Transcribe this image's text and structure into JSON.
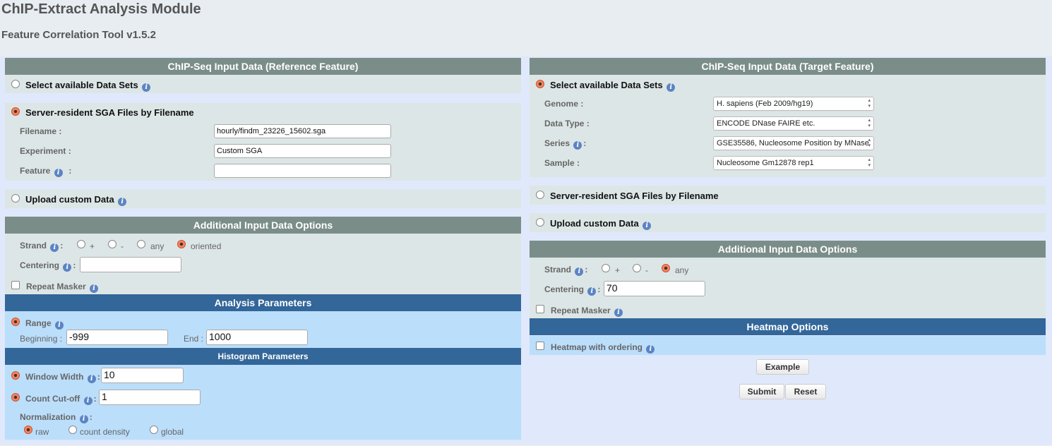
{
  "app": {
    "title": "ChIP-Extract Analysis Module",
    "subtitle": "Feature Correlation Tool v1.5.2"
  },
  "left": {
    "header": "ChIP-Seq Input Data (Reference Feature)",
    "select_datasets": "Select available Data Sets",
    "server_resident": "Server-resident SGA Files by Filename",
    "filename_label": "Filename :",
    "filename_value": "hourly/findm_23226_15602.sga",
    "experiment_label": "Experiment :",
    "experiment_value": "Custom SGA",
    "feature_label": "Feature",
    "feature_value": "",
    "upload": "Upload custom Data",
    "options_header": "Additional Input Data Options",
    "strand_label": "Strand",
    "strand_options": [
      "+",
      "-",
      "any",
      "oriented"
    ],
    "strand_selected": "oriented",
    "centering_label": "Centering",
    "centering_value": "",
    "repeat_masker": "Repeat Masker"
  },
  "analysis": {
    "header": "Analysis Parameters",
    "range": "Range",
    "beginning_label": "Beginning :",
    "beginning_value": "-999",
    "end_label": "End :",
    "end_value": "1000"
  },
  "histogram": {
    "header": "Histogram Parameters",
    "window_width": "Window Width",
    "window_width_value": "10",
    "count_cutoff": "Count Cut-off",
    "count_cutoff_value": "1",
    "normalization": "Normalization",
    "norm_options": [
      "raw",
      "count density",
      "global"
    ],
    "norm_selected": "raw"
  },
  "right": {
    "header": "ChIP-Seq Input Data (Target Feature)",
    "select_datasets": "Select available Data Sets",
    "genome_label": "Genome :",
    "genome_value": "H. sapiens (Feb 2009/hg19)",
    "datatype_label": "Data Type :",
    "datatype_value": "ENCODE DNase FAIRE etc.",
    "series_label": "Series",
    "series_value": "GSE35586, Nucleosome Position by MNase",
    "sample_label": "Sample :",
    "sample_value": "Nucleosome Gm12878 rep1",
    "server_resident": "Server-resident SGA Files by Filename",
    "upload": "Upload custom Data",
    "options_header": "Additional Input Data Options",
    "strand_label": "Strand",
    "strand_options": [
      "+",
      "-",
      "any"
    ],
    "strand_selected": "any",
    "centering_label": "Centering",
    "centering_value": "70",
    "repeat_masker": "Repeat Masker"
  },
  "heatmap": {
    "header": "Heatmap Options",
    "ordering": "Heatmap with ordering"
  },
  "buttons": {
    "example": "Example",
    "submit": "Submit",
    "reset": "Reset"
  },
  "colors": {
    "section_header_gray": "#7b8d89",
    "section_header_blue": "#336699",
    "radio_selected": "#f06a40",
    "info_icon": "#5b84c4"
  },
  "info_icon_glyph": "i"
}
